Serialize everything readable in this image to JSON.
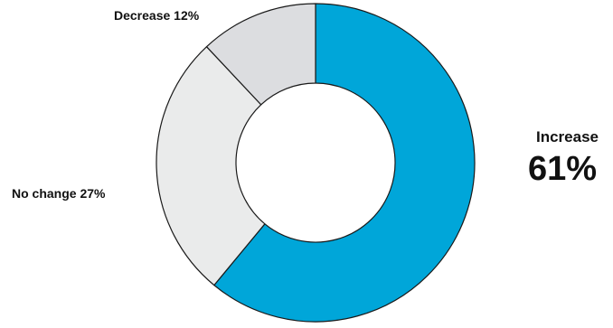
{
  "chart_data": {
    "type": "pie",
    "style": "donut",
    "title": "",
    "slices": [
      {
        "label": "Increase",
        "value": 61,
        "display": "61%",
        "color": "#00a6d9"
      },
      {
        "label": "No change",
        "value": 27,
        "display": "No change 27%",
        "color": "#eaebeb"
      },
      {
        "label": "Decrease",
        "value": 12,
        "display": "Decrease 12%",
        "color": "#dcdde0"
      }
    ],
    "slice_border_color": "#1a1a1a",
    "start_angle": "top, clockwise"
  }
}
